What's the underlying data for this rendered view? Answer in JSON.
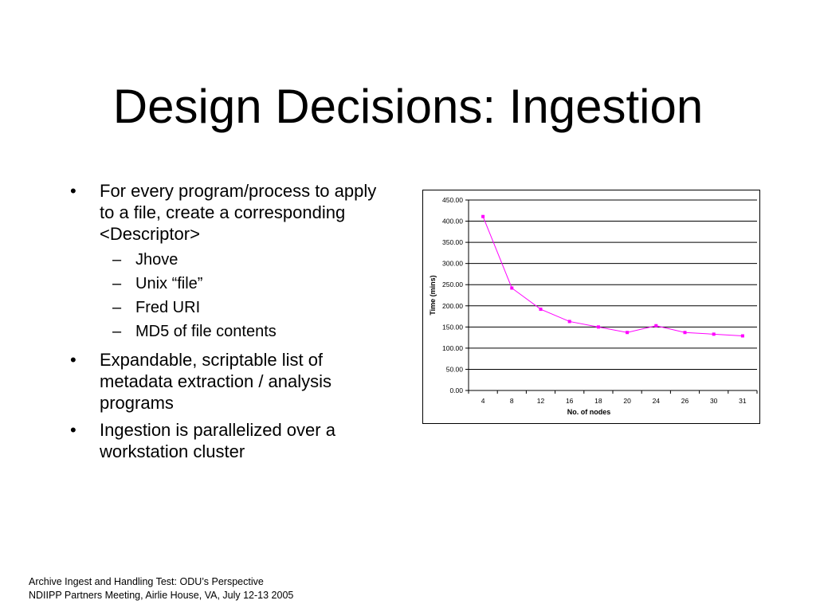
{
  "slide": {
    "title": "Design Decisions: Ingestion",
    "bullets": [
      {
        "text": "For every program/process to apply to a file, create a corresponding <Descriptor>",
        "sub": [
          "Jhove",
          "Unix “file”",
          "Fred URI",
          "MD5 of file contents"
        ]
      },
      {
        "text": "Expandable, scriptable list of metadata extraction / analysis programs"
      },
      {
        "text": "Ingestion is parallelized over a workstation cluster"
      }
    ],
    "footer": {
      "line1": "Archive Ingest and Handling Test: ODU’s Perspective",
      "line2": "NDIIPP Partners Meeting, Airlie House, VA, July 12-13 2005"
    }
  },
  "chart_data": {
    "type": "line",
    "categories": [
      "4",
      "8",
      "12",
      "16",
      "18",
      "20",
      "24",
      "26",
      "30",
      "31"
    ],
    "series": [
      {
        "values": [
          411,
          242,
          192,
          163,
          150,
          137,
          153,
          137,
          133,
          129
        ],
        "color": "#ff00ff"
      }
    ],
    "title": "",
    "xlabel": "No. of nodes",
    "ylabel": "Time (mins)",
    "ylim": [
      0,
      450
    ],
    "yticks": [
      "0.00",
      "50.00",
      "100.00",
      "150.00",
      "200.00",
      "250.00",
      "300.00",
      "350.00",
      "400.00",
      "450.00"
    ],
    "grid": true,
    "legend": "none"
  }
}
